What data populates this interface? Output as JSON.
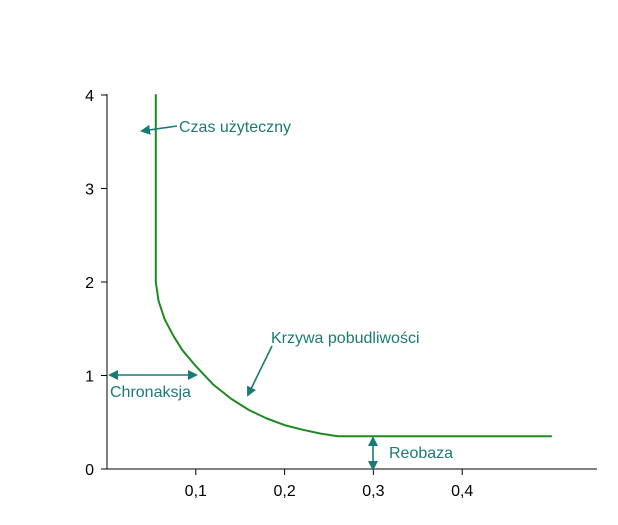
{
  "colors": {
    "curve": "#1d8a22",
    "annotation": "#1a7a76",
    "axis": "#000000",
    "background": "#ffffff"
  },
  "chart_data": {
    "type": "line",
    "title": "",
    "xlabel": "",
    "ylabel": "",
    "xlim": [
      0,
      0.55
    ],
    "ylim": [
      0,
      4
    ],
    "xticks": [
      0.1,
      0.2,
      0.3,
      0.4
    ],
    "xtick_labels": [
      "0,1",
      "0,2",
      "0,3",
      "0,4"
    ],
    "yticks": [
      0,
      1,
      2,
      3,
      4
    ],
    "ytick_labels": [
      "0",
      "1",
      "2",
      "3",
      "4"
    ],
    "grid": false,
    "series": [
      {
        "x": [
          0.055,
          0.055,
          0.055,
          0.058,
          0.065,
          0.075,
          0.085,
          0.1,
          0.12,
          0.14,
          0.16,
          0.18,
          0.2,
          0.22,
          0.24,
          0.26,
          0.28,
          0.3,
          0.35,
          0.4,
          0.45,
          0.5
        ],
        "y": [
          4.0,
          2.1,
          2.0,
          1.8,
          1.6,
          1.42,
          1.27,
          1.1,
          0.9,
          0.75,
          0.63,
          0.54,
          0.47,
          0.42,
          0.38,
          0.35,
          0.35,
          0.35,
          0.35,
          0.35,
          0.35,
          0.35
        ]
      }
    ],
    "annotations": [
      {
        "id": "czas",
        "text": "Czas użyteczny"
      },
      {
        "id": "krzywa",
        "text": "Krzywa pobudliwości"
      },
      {
        "id": "chronaksja",
        "text": "Chronaksja"
      },
      {
        "id": "reobaza",
        "text": "Reobaza"
      }
    ]
  }
}
